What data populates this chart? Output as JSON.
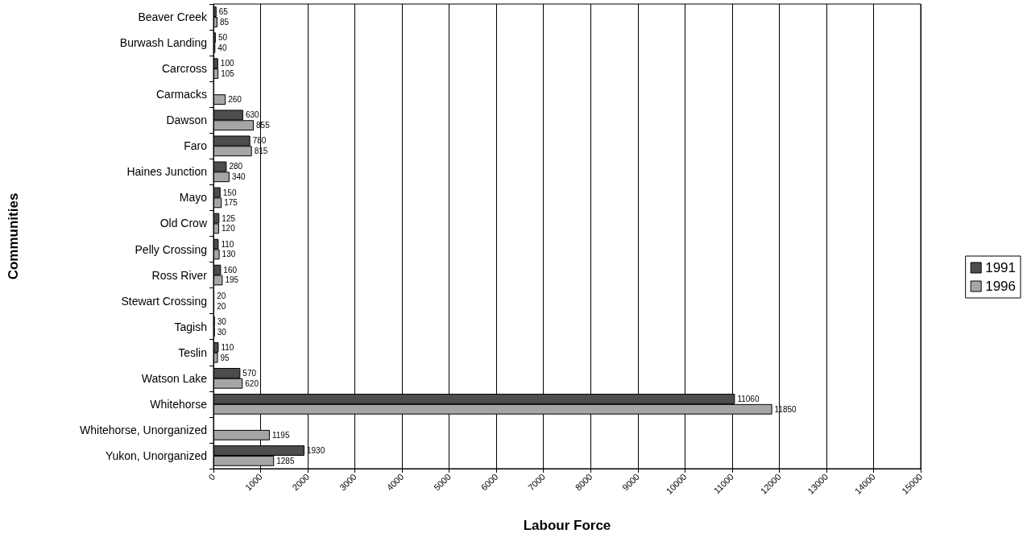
{
  "chart_data": {
    "type": "bar",
    "orientation": "horizontal",
    "xlabel": "Labour Force",
    "ylabel": "Communities",
    "categories": [
      "Beaver Creek",
      "Burwash Landing",
      "Carcross",
      "Carmacks",
      "Dawson",
      "Faro",
      "Haines Junction",
      "Mayo",
      "Old Crow",
      "Pelly Crossing",
      "Ross River",
      "Stewart Crossing",
      "Tagish",
      "Teslin",
      "Watson Lake",
      "Whitehorse",
      "Whitehorse, Unorganized",
      "Yukon, Unorganized"
    ],
    "series": [
      {
        "name": "1991",
        "color": "#4d4d4d",
        "values": [
          65,
          50,
          100,
          null,
          630,
          780,
          280,
          150,
          125,
          110,
          160,
          20,
          30,
          110,
          570,
          11060,
          null,
          1930
        ]
      },
      {
        "name": "1996",
        "color": "#a6a6a6",
        "values": [
          85,
          40,
          105,
          260,
          855,
          815,
          340,
          175,
          120,
          130,
          195,
          20,
          30,
          95,
          620,
          11850,
          1195,
          1285
        ]
      }
    ],
    "xlim": [
      0,
      15000
    ],
    "xticks": [
      0,
      1000,
      2000,
      3000,
      4000,
      5000,
      6000,
      7000,
      8000,
      9000,
      10000,
      11000,
      12000,
      13000,
      14000,
      15000
    ],
    "grid": "x",
    "legend": "right",
    "data_labels": true
  }
}
